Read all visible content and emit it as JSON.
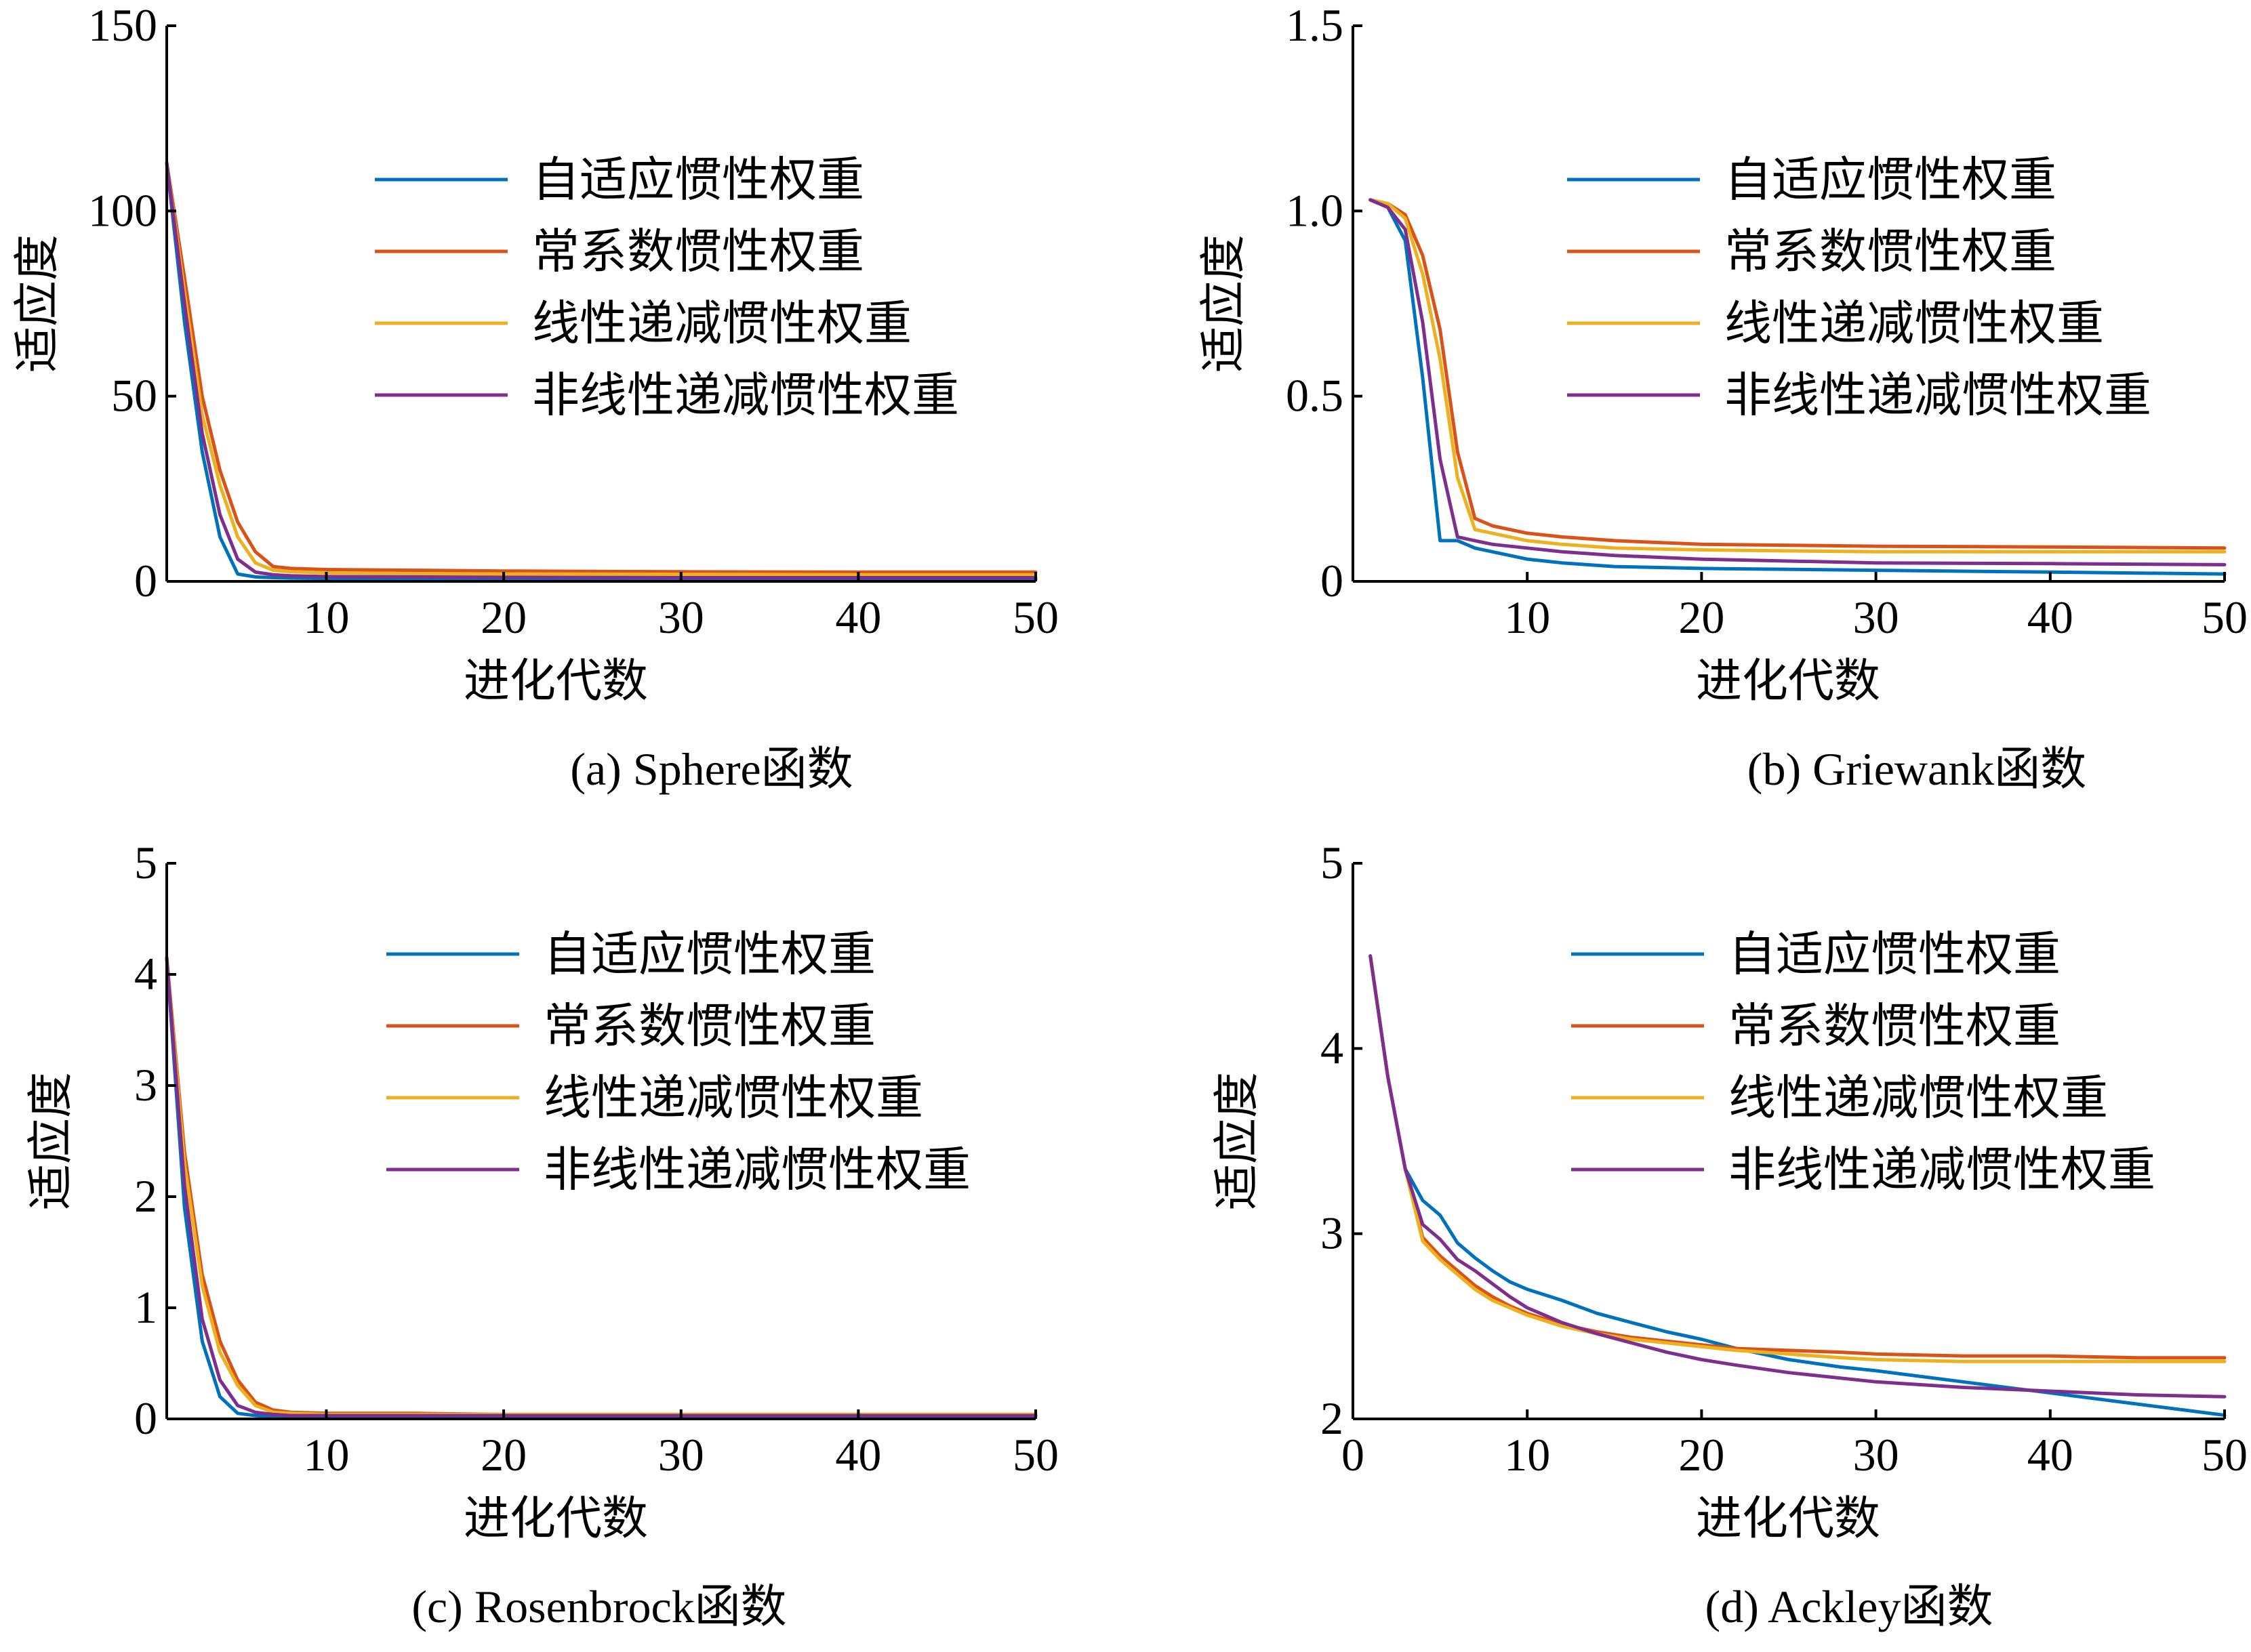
{
  "legend_colors": [
    "#0072BD",
    "#D95319",
    "#EDB120",
    "#7E2F8E"
  ],
  "chart_data": [
    {
      "type": "line",
      "caption": "(a) Sphere函数",
      "xlabel": "进化代数",
      "ylabel": "适应度",
      "xlim": [
        1,
        50
      ],
      "ylim": [
        0,
        150
      ],
      "xticks": [
        10,
        20,
        30,
        40,
        50
      ],
      "yticks": [
        0,
        50,
        100,
        150
      ],
      "yticklabels": [
        "0",
        "50",
        "100",
        "150"
      ],
      "legend_position": "upper-center",
      "series": [
        {
          "name": "自适应惯性权重",
          "x": [
            1,
            2,
            3,
            4,
            5,
            6,
            7,
            8,
            10,
            15,
            20,
            30,
            40,
            50
          ],
          "y": [
            113,
            70,
            35,
            12,
            2,
            1.2,
            1.0,
            0.9,
            0.8,
            0.7,
            0.6,
            0.5,
            0.5,
            0.5
          ]
        },
        {
          "name": "常系数惯性权重",
          "x": [
            1,
            2,
            3,
            4,
            5,
            6,
            7,
            8,
            10,
            15,
            20,
            30,
            40,
            50
          ],
          "y": [
            113,
            82,
            50,
            30,
            16,
            8,
            4,
            3.5,
            3.2,
            3.0,
            2.8,
            2.6,
            2.5,
            2.5
          ]
        },
        {
          "name": "线性递减惯性权重",
          "x": [
            1,
            2,
            3,
            4,
            5,
            6,
            7,
            8,
            10,
            15,
            20,
            30,
            40,
            50
          ],
          "y": [
            113,
            78,
            45,
            26,
            12,
            5,
            3,
            2.6,
            2.3,
            2.1,
            2.0,
            1.9,
            1.8,
            1.8
          ]
        },
        {
          "name": "非线性递减惯性权重",
          "x": [
            1,
            2,
            3,
            4,
            5,
            6,
            7,
            8,
            10,
            15,
            20,
            30,
            40,
            50
          ],
          "y": [
            113,
            75,
            40,
            18,
            6,
            2.5,
            1.8,
            1.5,
            1.3,
            1.2,
            1.1,
            1.0,
            1.0,
            1.0
          ]
        }
      ]
    },
    {
      "type": "line",
      "caption": "(b) Griewank函数",
      "xlabel": "进化代数",
      "ylabel": "适应度",
      "xlim": [
        0,
        50
      ],
      "ylim": [
        0,
        1.5
      ],
      "xticks": [
        10,
        20,
        30,
        40,
        50
      ],
      "yticks": [
        0,
        0.5,
        1.0,
        1.5
      ],
      "yticklabels": [
        "0",
        "0.5",
        "1.0",
        "1.5"
      ],
      "legend_position": "upper-center",
      "series": [
        {
          "name": "自适应惯性权重",
          "x": [
            1,
            2,
            3,
            4,
            5,
            6,
            7,
            8,
            10,
            12,
            15,
            20,
            30,
            40,
            50
          ],
          "y": [
            1.03,
            1.01,
            0.92,
            0.55,
            0.11,
            0.11,
            0.09,
            0.08,
            0.06,
            0.05,
            0.04,
            0.035,
            0.03,
            0.025,
            0.02
          ]
        },
        {
          "name": "常系数惯性权重",
          "x": [
            1,
            2,
            3,
            4,
            5,
            6,
            7,
            8,
            10,
            12,
            15,
            20,
            30,
            40,
            50
          ],
          "y": [
            1.03,
            1.02,
            0.99,
            0.88,
            0.68,
            0.35,
            0.17,
            0.15,
            0.13,
            0.12,
            0.11,
            0.1,
            0.095,
            0.093,
            0.09
          ]
        },
        {
          "name": "线性递减惯性权重",
          "x": [
            1,
            2,
            3,
            4,
            5,
            6,
            7,
            8,
            10,
            12,
            15,
            20,
            30,
            40,
            50
          ],
          "y": [
            1.03,
            1.02,
            0.98,
            0.83,
            0.6,
            0.28,
            0.14,
            0.13,
            0.11,
            0.1,
            0.09,
            0.085,
            0.08,
            0.08,
            0.08
          ]
        },
        {
          "name": "非线性递减惯性权重",
          "x": [
            1,
            2,
            3,
            4,
            5,
            6,
            7,
            8,
            10,
            12,
            15,
            20,
            30,
            40,
            50
          ],
          "y": [
            1.03,
            1.01,
            0.95,
            0.7,
            0.33,
            0.12,
            0.11,
            0.1,
            0.09,
            0.08,
            0.07,
            0.06,
            0.05,
            0.048,
            0.045
          ]
        }
      ]
    },
    {
      "type": "line",
      "caption": "(c) Rosenbrock函数",
      "xlabel": "进化代数",
      "ylabel": "适应度",
      "xlim": [
        1,
        50
      ],
      "ylim": [
        0,
        5
      ],
      "xticks": [
        10,
        20,
        30,
        40,
        50
      ],
      "yticks": [
        0,
        1,
        2,
        3,
        4,
        5
      ],
      "yticklabels": [
        "0",
        "1",
        "2",
        "3",
        "4",
        "5"
      ],
      "legend_position": "upper-center",
      "series": [
        {
          "name": "自适应惯性权重",
          "x": [
            1,
            2,
            3,
            4,
            5,
            6,
            7,
            8,
            10,
            15,
            20,
            30,
            40,
            50
          ],
          "y": [
            4.15,
            1.9,
            0.7,
            0.2,
            0.05,
            0.03,
            0.02,
            0.02,
            0.02,
            0.02,
            0.02,
            0.02,
            0.02,
            0.02
          ]
        },
        {
          "name": "常系数惯性权重",
          "x": [
            1,
            2,
            3,
            4,
            5,
            6,
            7,
            8,
            10,
            15,
            20,
            30,
            40,
            50
          ],
          "y": [
            4.15,
            2.4,
            1.3,
            0.7,
            0.35,
            0.15,
            0.08,
            0.06,
            0.05,
            0.05,
            0.04,
            0.04,
            0.04,
            0.04
          ]
        },
        {
          "name": "线性递减惯性权重",
          "x": [
            1,
            2,
            3,
            4,
            5,
            6,
            7,
            8,
            10,
            15,
            20,
            30,
            40,
            50
          ],
          "y": [
            4.15,
            2.3,
            1.2,
            0.6,
            0.3,
            0.12,
            0.06,
            0.05,
            0.04,
            0.04,
            0.04,
            0.04,
            0.04,
            0.04
          ]
        },
        {
          "name": "非线性递减惯性权重",
          "x": [
            1,
            2,
            3,
            4,
            5,
            6,
            7,
            8,
            10,
            15,
            20,
            30,
            40,
            50
          ],
          "y": [
            4.15,
            2.1,
            0.9,
            0.35,
            0.12,
            0.06,
            0.04,
            0.03,
            0.03,
            0.03,
            0.03,
            0.03,
            0.03,
            0.03
          ]
        }
      ]
    },
    {
      "type": "line",
      "caption": "(d) Ackley函数",
      "xlabel": "进化代数",
      "ylabel": "适应度",
      "xlim": [
        0,
        50
      ],
      "ylim": [
        2,
        5
      ],
      "xticks": [
        0,
        10,
        20,
        30,
        40,
        50
      ],
      "yticks": [
        2,
        3,
        4,
        5
      ],
      "yticklabels": [
        "2",
        "3",
        "4",
        "5"
      ],
      "legend_position": "upper-center",
      "series": [
        {
          "name": "自适应惯性权重",
          "x": [
            1,
            2,
            3,
            4,
            5,
            6,
            7,
            8,
            9,
            10,
            12,
            14,
            16,
            18,
            20,
            22,
            25,
            28,
            30,
            35,
            40,
            45,
            50
          ],
          "y": [
            4.5,
            3.85,
            3.35,
            3.18,
            3.1,
            2.95,
            2.87,
            2.8,
            2.74,
            2.7,
            2.64,
            2.57,
            2.52,
            2.47,
            2.43,
            2.38,
            2.32,
            2.28,
            2.26,
            2.2,
            2.14,
            2.08,
            2.02
          ]
        },
        {
          "name": "常系数惯性权重",
          "x": [
            1,
            2,
            3,
            4,
            5,
            6,
            7,
            8,
            9,
            10,
            12,
            14,
            16,
            18,
            20,
            22,
            25,
            28,
            30,
            35,
            40,
            45,
            50
          ],
          "y": [
            4.5,
            3.85,
            3.35,
            2.98,
            2.88,
            2.8,
            2.72,
            2.66,
            2.61,
            2.57,
            2.51,
            2.47,
            2.44,
            2.42,
            2.4,
            2.38,
            2.37,
            2.36,
            2.35,
            2.34,
            2.34,
            2.33,
            2.33
          ]
        },
        {
          "name": "线性递减惯性权重",
          "x": [
            1,
            2,
            3,
            4,
            5,
            6,
            7,
            8,
            9,
            10,
            12,
            14,
            16,
            18,
            20,
            22,
            25,
            28,
            30,
            35,
            40,
            45,
            50
          ],
          "y": [
            4.5,
            3.85,
            3.35,
            2.96,
            2.86,
            2.78,
            2.7,
            2.64,
            2.6,
            2.56,
            2.5,
            2.46,
            2.43,
            2.41,
            2.39,
            2.37,
            2.35,
            2.33,
            2.32,
            2.31,
            2.31,
            2.31,
            2.31
          ]
        },
        {
          "name": "非线性递减惯性权重",
          "x": [
            1,
            2,
            3,
            4,
            5,
            6,
            7,
            8,
            9,
            10,
            12,
            14,
            16,
            18,
            20,
            22,
            25,
            28,
            30,
            35,
            40,
            45,
            50
          ],
          "y": [
            4.5,
            3.85,
            3.35,
            3.05,
            2.97,
            2.86,
            2.8,
            2.73,
            2.66,
            2.6,
            2.52,
            2.46,
            2.41,
            2.36,
            2.32,
            2.29,
            2.25,
            2.22,
            2.2,
            2.17,
            2.15,
            2.13,
            2.12
          ]
        }
      ]
    }
  ]
}
